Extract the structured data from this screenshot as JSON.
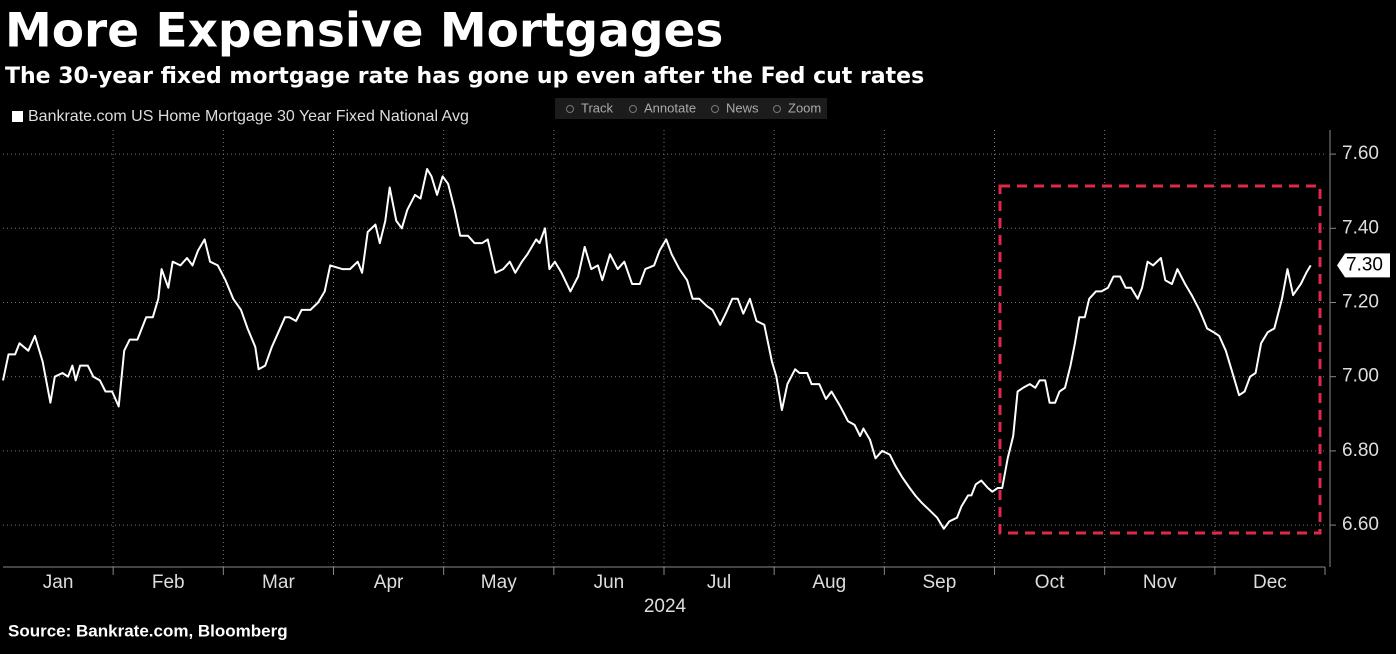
{
  "chart_data": {
    "type": "line",
    "title": "More Expensive Mortgages",
    "subtitle": "The 30-year fixed mortgage rate has gone up even after the Fed cut rates",
    "toolbar": [
      "Track",
      "Annotate",
      "News",
      "Zoom"
    ],
    "xlabel": "2024",
    "source": "Source: Bankrate.com, Bloomberg",
    "end_label": "7.30",
    "xlim": [
      0,
      12
    ],
    "xticks": [
      {
        "value": 0.5,
        "label": "Jan"
      },
      {
        "value": 1.5,
        "label": "Feb"
      },
      {
        "value": 2.5,
        "label": "Mar"
      },
      {
        "value": 3.5,
        "label": "Apr"
      },
      {
        "value": 4.5,
        "label": "May"
      },
      {
        "value": 5.5,
        "label": "Jun"
      },
      {
        "value": 6.5,
        "label": "Jul"
      },
      {
        "value": 7.5,
        "label": "Aug"
      },
      {
        "value": 8.5,
        "label": "Sep"
      },
      {
        "value": 9.5,
        "label": "Oct"
      },
      {
        "value": 10.5,
        "label": "Nov"
      },
      {
        "value": 11.5,
        "label": "Dec"
      }
    ],
    "ylim": [
      6.487,
      7.665
    ],
    "yticks": [
      {
        "value": 6.6,
        "label": "6.60"
      },
      {
        "value": 6.8,
        "label": "6.80"
      },
      {
        "value": 7.0,
        "label": "7.00"
      },
      {
        "value": 7.2,
        "label": "7.20"
      },
      {
        "value": 7.4,
        "label": "7.40"
      },
      {
        "value": 7.6,
        "label": "7.60"
      }
    ],
    "grid": true,
    "x": [
      0.0,
      0.05,
      0.11,
      0.15,
      0.23,
      0.29,
      0.36,
      0.43,
      0.47,
      0.54,
      0.59,
      0.63,
      0.66,
      0.7,
      0.77,
      0.82,
      0.88,
      0.93,
      0.99,
      1.05,
      1.1,
      1.15,
      1.22,
      1.3,
      1.36,
      1.41,
      1.44,
      1.5,
      1.54,
      1.61,
      1.67,
      1.72,
      1.77,
      1.83,
      1.88,
      1.95,
      2.02,
      2.09,
      2.16,
      2.22,
      2.29,
      2.32,
      2.38,
      2.44,
      2.5,
      2.56,
      2.6,
      2.66,
      2.71,
      2.79,
      2.86,
      2.92,
      2.97,
      3.08,
      3.15,
      3.22,
      3.26,
      3.31,
      3.38,
      3.42,
      3.47,
      3.51,
      3.57,
      3.62,
      3.67,
      3.74,
      3.79,
      3.85,
      3.89,
      3.94,
      3.99,
      4.04,
      4.1,
      4.15,
      4.22,
      4.28,
      4.35,
      4.4,
      4.47,
      4.54,
      4.6,
      4.65,
      4.71,
      4.76,
      4.84,
      4.87,
      4.92,
      4.96,
      5.01,
      5.07,
      5.15,
      5.22,
      5.28,
      5.34,
      5.4,
      5.44,
      5.51,
      5.58,
      5.64,
      5.71,
      5.78,
      5.83,
      5.91,
      5.96,
      6.02,
      6.07,
      6.14,
      6.21,
      6.26,
      6.32,
      6.39,
      6.44,
      6.51,
      6.56,
      6.62,
      6.67,
      6.72,
      6.78,
      6.84,
      6.91,
      6.98,
      7.02,
      7.07,
      7.12,
      7.19,
      7.23,
      7.3,
      7.34,
      7.41,
      7.47,
      7.52,
      7.6,
      7.67,
      7.73,
      7.78,
      7.81,
      7.87,
      7.92,
      7.98,
      8.05,
      8.1,
      8.16,
      8.23,
      8.28,
      8.34,
      8.41,
      8.48,
      8.54,
      8.59,
      8.66,
      8.7,
      8.76,
      8.79,
      8.83,
      8.88,
      8.94,
      8.98,
      9.03,
      9.07,
      9.12,
      9.17,
      9.21,
      9.26,
      9.32,
      9.37,
      9.41,
      9.46,
      9.5,
      9.55,
      9.59,
      9.64,
      9.69,
      9.73,
      9.77,
      9.82,
      9.86,
      9.92,
      9.97,
      10.03,
      10.08,
      10.14,
      10.19,
      10.24,
      10.3,
      10.34,
      10.39,
      10.44,
      10.51,
      10.55,
      10.61,
      10.66,
      10.73,
      10.79,
      10.86,
      10.93,
      10.99,
      11.04,
      11.1,
      11.15,
      11.22,
      11.27,
      11.32,
      11.37,
      11.42,
      11.48,
      11.54,
      11.61,
      11.66,
      11.71,
      11.78,
      11.83,
      11.87
    ],
    "series": [
      {
        "name": "Bankrate.com US Home Mortgage 30 Year Fixed National Avg",
        "color": "#ffffff",
        "values": [
          6.99,
          7.06,
          7.06,
          7.09,
          7.07,
          7.11,
          7.04,
          6.93,
          7.0,
          7.01,
          7.0,
          7.03,
          6.99,
          7.03,
          7.03,
          7.0,
          6.99,
          6.96,
          6.96,
          6.92,
          7.07,
          7.1,
          7.1,
          7.16,
          7.16,
          7.21,
          7.29,
          7.24,
          7.31,
          7.3,
          7.32,
          7.3,
          7.34,
          7.37,
          7.31,
          7.3,
          7.26,
          7.21,
          7.18,
          7.13,
          7.08,
          7.02,
          7.03,
          7.08,
          7.12,
          7.16,
          7.16,
          7.15,
          7.18,
          7.18,
          7.2,
          7.23,
          7.3,
          7.29,
          7.29,
          7.31,
          7.28,
          7.39,
          7.41,
          7.36,
          7.42,
          7.51,
          7.42,
          7.4,
          7.45,
          7.49,
          7.48,
          7.56,
          7.54,
          7.49,
          7.54,
          7.52,
          7.45,
          7.38,
          7.38,
          7.36,
          7.36,
          7.37,
          7.28,
          7.29,
          7.31,
          7.28,
          7.31,
          7.33,
          7.37,
          7.36,
          7.4,
          7.29,
          7.31,
          7.28,
          7.23,
          7.27,
          7.35,
          7.29,
          7.3,
          7.26,
          7.33,
          7.29,
          7.31,
          7.25,
          7.25,
          7.29,
          7.3,
          7.34,
          7.37,
          7.33,
          7.29,
          7.26,
          7.21,
          7.21,
          7.19,
          7.18,
          7.14,
          7.17,
          7.21,
          7.21,
          7.17,
          7.21,
          7.15,
          7.14,
          7.04,
          7.0,
          6.91,
          6.98,
          7.02,
          7.01,
          7.01,
          6.98,
          6.98,
          6.94,
          6.96,
          6.92,
          6.88,
          6.87,
          6.84,
          6.86,
          6.83,
          6.78,
          6.8,
          6.79,
          6.76,
          6.73,
          6.7,
          6.68,
          6.66,
          6.64,
          6.62,
          6.59,
          6.61,
          6.62,
          6.65,
          6.68,
          6.68,
          6.71,
          6.72,
          6.7,
          6.69,
          6.7,
          6.7,
          6.78,
          6.84,
          6.96,
          6.97,
          6.98,
          6.97,
          6.99,
          6.99,
          6.93,
          6.93,
          6.96,
          6.97,
          7.03,
          7.09,
          7.16,
          7.16,
          7.21,
          7.23,
          7.23,
          7.24,
          7.27,
          7.27,
          7.24,
          7.24,
          7.21,
          7.24,
          7.31,
          7.3,
          7.32,
          7.26,
          7.25,
          7.29,
          7.25,
          7.22,
          7.18,
          7.13,
          7.12,
          7.11,
          7.07,
          7.02,
          6.95,
          6.96,
          7.0,
          7.01,
          7.09,
          7.12,
          7.13,
          7.21,
          7.29,
          7.22,
          7.25,
          7.28,
          7.3
        ]
      }
    ]
  }
}
